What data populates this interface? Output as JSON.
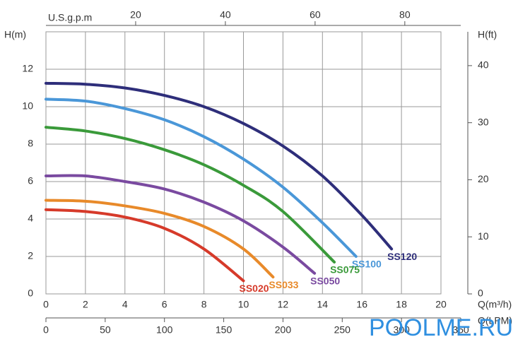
{
  "chart_data": {
    "type": "line",
    "y_label": "H(m)",
    "x_label": "Q(m³/h)",
    "xlim": [
      0,
      20
    ],
    "xticks": [
      0,
      2,
      4,
      6,
      8,
      10,
      12,
      14,
      16,
      18,
      20
    ],
    "ylim": [
      0,
      14
    ],
    "yticks": [
      0,
      2,
      4,
      6,
      8,
      10,
      12
    ],
    "grid": true,
    "y2_label": "H(ft)",
    "y2lim": [
      0,
      45.93
    ],
    "y2ticks": [
      0,
      10,
      20,
      30,
      40
    ],
    "x2_label": "U.S.g.p.m",
    "x2lim": [
      0,
      88.06
    ],
    "x2ticks": [
      20,
      40,
      60,
      80
    ],
    "x3_label": "Q(LPM)",
    "x3lim": [
      0,
      333.3
    ],
    "x3ticks": [
      0,
      50,
      100,
      150,
      200,
      250,
      300,
      350
    ],
    "watermark": "POOLME.RU",
    "series": [
      {
        "name": "SS120",
        "color": "#2e2e7a",
        "x": [
          0,
          2,
          4,
          6,
          8,
          10,
          12,
          14,
          16,
          17.5
        ],
        "values": [
          11.25,
          11.2,
          11.0,
          10.6,
          10.0,
          9.1,
          7.9,
          6.3,
          4.2,
          2.4
        ]
      },
      {
        "name": "SS100",
        "color": "#4a97d8",
        "x": [
          0,
          2,
          4,
          6,
          8,
          10,
          12,
          14,
          15.7
        ],
        "values": [
          10.4,
          10.3,
          9.9,
          9.3,
          8.4,
          7.2,
          5.7,
          3.8,
          2.0
        ]
      },
      {
        "name": "SS075",
        "color": "#3a9a3a",
        "x": [
          0,
          2,
          4,
          6,
          8,
          10,
          12,
          14.6
        ],
        "values": [
          8.9,
          8.7,
          8.3,
          7.7,
          6.9,
          5.8,
          4.4,
          1.7
        ]
      },
      {
        "name": "SS050",
        "color": "#7a4aa0",
        "x": [
          0,
          2,
          4,
          6,
          8,
          10,
          12,
          13.6
        ],
        "values": [
          6.3,
          6.3,
          6.0,
          5.6,
          4.9,
          3.9,
          2.5,
          1.1
        ]
      },
      {
        "name": "SS033",
        "color": "#e88a2a",
        "x": [
          0,
          2,
          4,
          6,
          8,
          10,
          11.5
        ],
        "values": [
          5.0,
          4.95,
          4.7,
          4.3,
          3.6,
          2.4,
          0.9
        ]
      },
      {
        "name": "SS020",
        "color": "#d63a2a",
        "x": [
          0,
          2,
          4,
          6,
          8,
          10
        ],
        "values": [
          4.5,
          4.4,
          4.1,
          3.5,
          2.4,
          0.7
        ]
      }
    ]
  }
}
